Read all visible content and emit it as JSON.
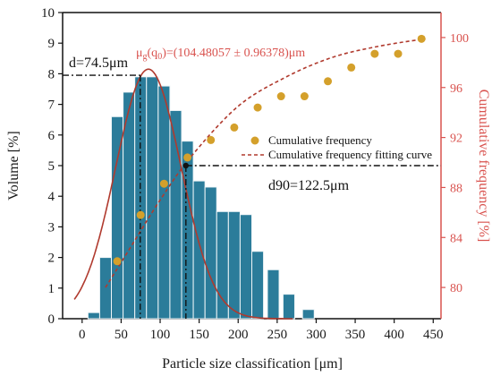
{
  "chart_data": {
    "type": "bar",
    "xlabel": "Particle size classification [μm]",
    "ylabel": "Volume [%]",
    "y2label": "Cumulative frequency [%]",
    "xlim": [
      -25,
      460
    ],
    "ylim": [
      0,
      10
    ],
    "y2lim": [
      77.5,
      102
    ],
    "x_ticks": [
      0,
      50,
      100,
      150,
      200,
      250,
      300,
      350,
      400,
      450
    ],
    "y_ticks": [
      0,
      1,
      2,
      3,
      4,
      5,
      6,
      7,
      8,
      9,
      10
    ],
    "y2_ticks": [
      80,
      84,
      88,
      92,
      96,
      100
    ],
    "bin_width": 15,
    "bins": [
      {
        "x": 15,
        "value": 0.2
      },
      {
        "x": 30,
        "value": 2.0
      },
      {
        "x": 45,
        "value": 6.6
      },
      {
        "x": 60,
        "value": 7.4
      },
      {
        "x": 75,
        "value": 7.9
      },
      {
        "x": 90,
        "value": 7.9
      },
      {
        "x": 105,
        "value": 7.6
      },
      {
        "x": 120,
        "value": 6.8
      },
      {
        "x": 135,
        "value": 5.8
      },
      {
        "x": 150,
        "value": 4.5
      },
      {
        "x": 165,
        "value": 4.3
      },
      {
        "x": 180,
        "value": 3.5
      },
      {
        "x": 195,
        "value": 3.5
      },
      {
        "x": 210,
        "value": 3.4
      },
      {
        "x": 225,
        "value": 2.2
      },
      {
        "x": 245,
        "value": 1.6
      },
      {
        "x": 265,
        "value": 0.8
      },
      {
        "x": 290,
        "value": 0.3
      }
    ],
    "normal_fit": {
      "mean": 85,
      "sd": 42,
      "peak": 8.15,
      "x_range": [
        -10,
        270
      ]
    },
    "cumulative_frequency": {
      "name": "Cumulative frequency",
      "points": [
        {
          "x": 45,
          "y": 82.1
        },
        {
          "x": 75,
          "y": 85.8
        },
        {
          "x": 105,
          "y": 88.3
        },
        {
          "x": 135,
          "y": 90.4
        },
        {
          "x": 165,
          "y": 91.8
        },
        {
          "x": 195,
          "y": 92.8
        },
        {
          "x": 225,
          "y": 94.4
        },
        {
          "x": 255,
          "y": 95.3
        },
        {
          "x": 285,
          "y": 95.3
        },
        {
          "x": 315,
          "y": 96.5
        },
        {
          "x": 345,
          "y": 97.6
        },
        {
          "x": 375,
          "y": 98.7
        },
        {
          "x": 405,
          "y": 98.7
        },
        {
          "x": 435,
          "y": 99.9
        }
      ]
    },
    "fitting_curve": {
      "name": "Cumulative frequency fitting curve",
      "points": [
        {
          "x": 30,
          "y": 80.0
        },
        {
          "x": 60,
          "y": 83.0
        },
        {
          "x": 100,
          "y": 87.0
        },
        {
          "x": 140,
          "y": 90.5
        },
        {
          "x": 200,
          "y": 94.5
        },
        {
          "x": 260,
          "y": 96.8
        },
        {
          "x": 320,
          "y": 98.4
        },
        {
          "x": 380,
          "y": 99.3
        },
        {
          "x": 440,
          "y": 99.9
        }
      ]
    },
    "annotations": {
      "d50_label": "d=74.5μm",
      "d50_x": 74.5,
      "d50_y": 7.95,
      "mu_main": "μ",
      "mu_sub": "g",
      "mu_rest": "(q",
      "mu_sub2": "0",
      "mu_value": ")=(104.48057 ± 0.96378)μm",
      "d90_label": "d90=122.5μm",
      "d90_x": 133,
      "d90_y": 5.0
    },
    "legend": {
      "placement": "right",
      "items": [
        "Cumulative frequency",
        "Cumulative frequency fitting curve"
      ]
    },
    "colors": {
      "bar": "#2b7c9a",
      "bar_edge": "#f0f6f8",
      "normal_curve": "#b03a2e",
      "scatter": "#d4a02b",
      "fitting_curve": "#b03a2e",
      "right_axis": "#d9534f"
    }
  }
}
